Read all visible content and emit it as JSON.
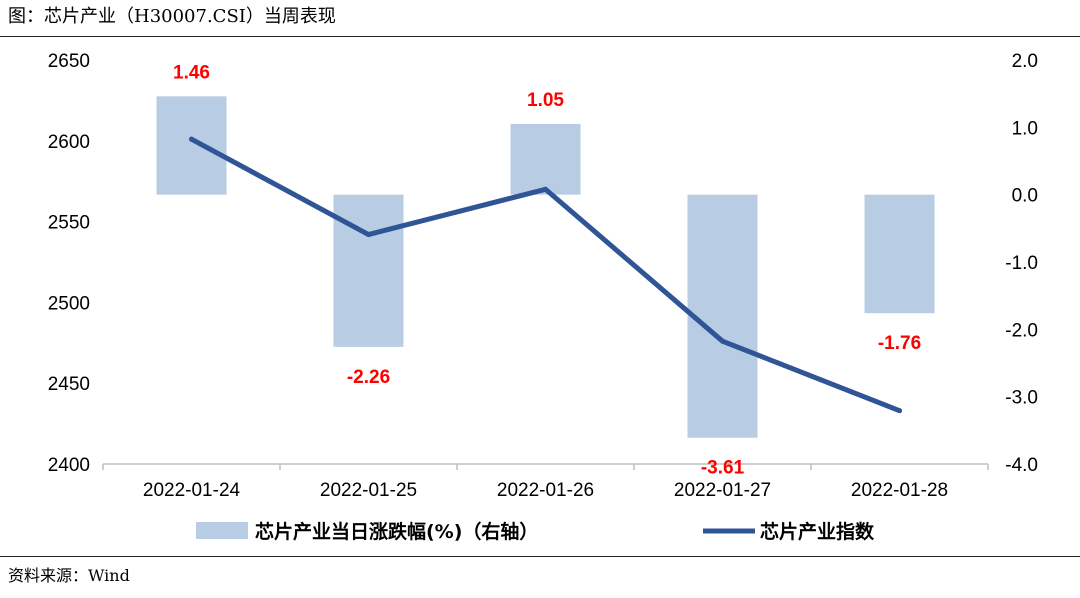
{
  "title": "图：芯片产业（H30007.CSI）当周表现",
  "source": "资料来源：Wind",
  "chart_data": {
    "type": "bar+line",
    "categories": [
      "2022-01-24",
      "2022-01-25",
      "2022-01-26",
      "2022-01-27",
      "2022-01-28"
    ],
    "series": [
      {
        "name": "芯片产业当日涨跌幅(%)（右轴）",
        "type": "bar",
        "axis": "right",
        "color": "#b8cce4",
        "values": [
          1.46,
          -2.26,
          1.05,
          -3.61,
          -1.76
        ],
        "labels": [
          "1.46",
          "-2.26",
          "1.05",
          "-3.61",
          "-1.76"
        ]
      },
      {
        "name": "芯片产业指数",
        "type": "line",
        "axis": "left",
        "color": "#2f5597",
        "values": [
          2601,
          2542,
          2570,
          2476,
          2433
        ]
      }
    ],
    "y_left": {
      "lim": [
        2400,
        2650
      ],
      "ticks": [
        "2400",
        "2450",
        "2500",
        "2550",
        "2600",
        "2650"
      ]
    },
    "y_right": {
      "lim": [
        -4.0,
        2.0
      ],
      "ticks": [
        "2.0",
        "1.0",
        "0.0",
        "-1.0",
        "-2.0",
        "-3.0",
        "-4.0"
      ]
    },
    "label_color": "#ff0000",
    "grid": false,
    "legend_position": "bottom"
  }
}
